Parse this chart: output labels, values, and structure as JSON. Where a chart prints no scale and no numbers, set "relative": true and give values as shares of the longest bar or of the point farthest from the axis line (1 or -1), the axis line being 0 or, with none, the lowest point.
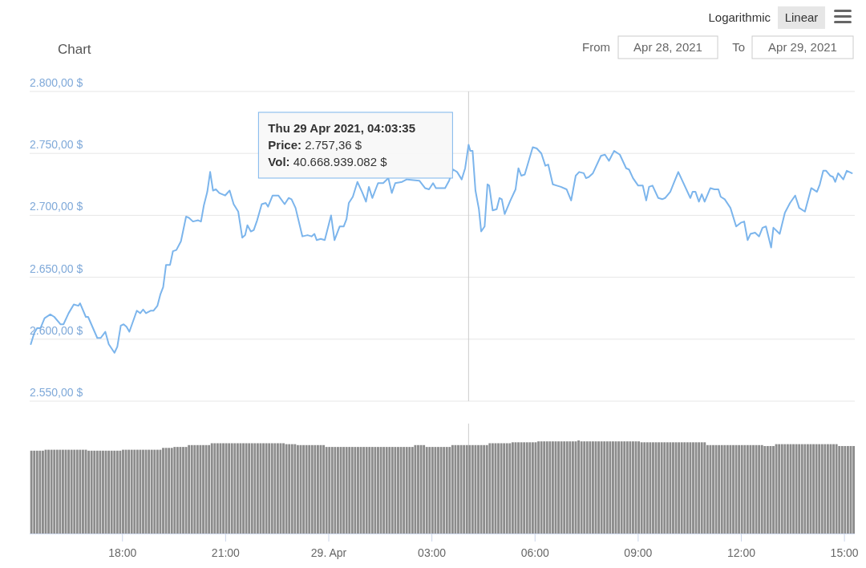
{
  "chart_data": [
    {
      "type": "line",
      "title": "Chart",
      "color": "#7cb5ec",
      "xlim": [
        "2021-04-28T15:18",
        "2021-04-29T15:18"
      ],
      "ylim": [
        2550,
        2800
      ],
      "grid": "y",
      "tick_labels": "y",
      "yticks": [
        {
          "value": 2550,
          "label": "2.550,00 $"
        },
        {
          "value": 2600,
          "label": "2.600,00 $"
        },
        {
          "value": 2650,
          "label": "2.650,00 $"
        },
        {
          "value": 2700,
          "label": "2.700,00 $"
        },
        {
          "value": 2750,
          "label": "2.750,00 $"
        },
        {
          "value": 2800,
          "label": "2.800,00 $"
        }
      ],
      "x": [
        "2021-04-28T15:20",
        "2021-04-28T15:26",
        "2021-04-28T15:31",
        "2021-04-28T15:37",
        "2021-04-28T15:44",
        "2021-04-28T15:54",
        "2021-04-28T16:01",
        "2021-04-28T16:12",
        "2021-04-28T16:17",
        "2021-04-28T16:26",
        "2021-04-28T16:35",
        "2021-04-28T16:43",
        "2021-04-28T16:46",
        "2021-04-28T16:56",
        "2021-04-28T17:00",
        "2021-04-28T17:16",
        "2021-04-28T17:22",
        "2021-04-28T17:30",
        "2021-04-28T17:36",
        "2021-04-28T17:46",
        "2021-04-28T17:51",
        "2021-04-28T17:57",
        "2021-04-28T18:02",
        "2021-04-28T18:07",
        "2021-04-28T18:12",
        "2021-04-28T18:25",
        "2021-04-28T18:31",
        "2021-04-28T18:36",
        "2021-04-28T18:41",
        "2021-04-28T18:49",
        "2021-04-28T18:54",
        "2021-04-28T19:01",
        "2021-04-28T19:06",
        "2021-04-28T19:11",
        "2021-04-28T19:16",
        "2021-04-28T19:23",
        "2021-04-28T19:28",
        "2021-04-28T19:34",
        "2021-04-28T19:42",
        "2021-04-28T19:51",
        "2021-04-28T19:56",
        "2021-04-28T20:03",
        "2021-04-28T20:12",
        "2021-04-28T20:17",
        "2021-04-28T20:22",
        "2021-04-28T20:28",
        "2021-04-28T20:33",
        "2021-04-28T20:38",
        "2021-04-28T20:43",
        "2021-04-28T20:49",
        "2021-04-28T20:54",
        "2021-04-28T20:59",
        "2021-04-28T21:07",
        "2021-04-28T21:14",
        "2021-04-28T21:22",
        "2021-04-28T21:29",
        "2021-04-28T21:34",
        "2021-04-28T21:38",
        "2021-04-28T21:44",
        "2021-04-28T21:49",
        "2021-04-28T21:55",
        "2021-04-28T22:03",
        "2021-04-28T22:10",
        "2021-04-28T22:14",
        "2021-04-28T22:22",
        "2021-04-28T22:28",
        "2021-04-28T22:32",
        "2021-04-28T22:43",
        "2021-04-28T22:50",
        "2021-04-28T22:55",
        "2021-04-28T23:02",
        "2021-04-28T23:14",
        "2021-04-28T23:23",
        "2021-04-28T23:30",
        "2021-04-28T23:35",
        "2021-04-28T23:39",
        "2021-04-28T23:46",
        "2021-04-28T23:53",
        "2021-04-29T00:04",
        "2021-04-29T00:10",
        "2021-04-29T00:19",
        "2021-04-29T00:26",
        "2021-04-29T00:31",
        "2021-04-29T00:35",
        "2021-04-29T00:42",
        "2021-04-29T00:50",
        "2021-04-29T00:58",
        "2021-04-29T01:05",
        "2021-04-29T01:10",
        "2021-04-29T01:16",
        "2021-04-29T01:26",
        "2021-04-29T01:35",
        "2021-04-29T01:44",
        "2021-04-29T01:50",
        "2021-04-29T01:56",
        "2021-04-29T02:08",
        "2021-04-29T02:16",
        "2021-04-29T02:38",
        "2021-04-29T02:48",
        "2021-04-29T02:55",
        "2021-04-29T03:02",
        "2021-04-29T03:07",
        "2021-04-29T03:23",
        "2021-04-29T03:30",
        "2021-04-29T03:37",
        "2021-04-29T03:44",
        "2021-04-29T03:52",
        "2021-04-29T03:58",
        "2021-04-29T04:04",
        "2021-04-29T04:07",
        "2021-04-29T04:11",
        "2021-04-29T04:16",
        "2021-04-29T04:22",
        "2021-04-29T04:26",
        "2021-04-29T04:32",
        "2021-04-29T04:37",
        "2021-04-29T04:40",
        "2021-04-29T04:46",
        "2021-04-29T04:53",
        "2021-04-29T04:58",
        "2021-04-29T05:02",
        "2021-04-29T05:07",
        "2021-04-29T05:17",
        "2021-04-29T05:26",
        "2021-04-29T05:31",
        "2021-04-29T05:36",
        "2021-04-29T05:42",
        "2021-04-29T05:49",
        "2021-04-29T05:56",
        "2021-04-29T06:03",
        "2021-04-29T06:11",
        "2021-04-29T06:18",
        "2021-04-29T06:23",
        "2021-04-29T06:31",
        "2021-04-29T06:38",
        "2021-04-29T06:45",
        "2021-04-29T06:55",
        "2021-04-29T07:03",
        "2021-04-29T07:11",
        "2021-04-29T07:17",
        "2021-04-29T07:25",
        "2021-04-29T07:29",
        "2021-04-29T07:34",
        "2021-04-29T07:41",
        "2021-04-29T07:55",
        "2021-04-29T08:02",
        "2021-04-29T08:09",
        "2021-04-29T08:18",
        "2021-04-29T08:28",
        "2021-04-29T08:39",
        "2021-04-29T08:44",
        "2021-04-29T08:51",
        "2021-04-29T09:00",
        "2021-04-29T09:08",
        "2021-04-29T09:14",
        "2021-04-29T09:19",
        "2021-04-29T09:25",
        "2021-04-29T09:35",
        "2021-04-29T09:42",
        "2021-04-29T09:47",
        "2021-04-29T09:56",
        "2021-04-29T10:03",
        "2021-04-29T10:10",
        "2021-04-29T10:31",
        "2021-04-29T10:35",
        "2021-04-29T10:40",
        "2021-04-29T10:46",
        "2021-04-29T10:51",
        "2021-04-29T10:56",
        "2021-04-29T11:06",
        "2021-04-29T11:13",
        "2021-04-29T11:20",
        "2021-04-29T11:24",
        "2021-04-29T11:31",
        "2021-04-29T11:41",
        "2021-04-29T11:51",
        "2021-04-29T11:59",
        "2021-04-29T12:05",
        "2021-04-29T12:11",
        "2021-04-29T12:16",
        "2021-04-29T12:24",
        "2021-04-29T12:31",
        "2021-04-29T12:37",
        "2021-04-29T12:43",
        "2021-04-29T12:52",
        "2021-04-29T12:56",
        "2021-04-29T13:07",
        "2021-04-29T13:16",
        "2021-04-29T13:25",
        "2021-04-29T13:34",
        "2021-04-29T13:41",
        "2021-04-29T13:51",
        "2021-04-29T14:02",
        "2021-04-29T14:12",
        "2021-04-29T14:17",
        "2021-04-29T14:23",
        "2021-04-29T14:28",
        "2021-04-29T14:35",
        "2021-04-29T14:40",
        "2021-04-29T14:44",
        "2021-04-29T14:49",
        "2021-04-29T14:58",
        "2021-04-29T15:04",
        "2021-04-29T15:13"
      ],
      "values": [
        2596,
        2605,
        2609,
        2609,
        2617,
        2620,
        2618,
        2612,
        2612,
        2621,
        2628,
        2627,
        2629,
        2618,
        2618,
        2601,
        2601,
        2606,
        2596,
        2589,
        2594,
        2611,
        2612,
        2610,
        2606,
        2623,
        2621,
        2624,
        2621,
        2623,
        2623,
        2627,
        2636,
        2642,
        2660,
        2660,
        2671,
        2672,
        2679,
        2699,
        2698,
        2695,
        2696,
        2695,
        2708,
        2719,
        2735,
        2720,
        2721,
        2718,
        2717,
        2716,
        2720,
        2709,
        2703,
        2682,
        2684,
        2692,
        2687,
        2688,
        2696,
        2709,
        2710,
        2707,
        2716,
        2716,
        2716,
        2709,
        2714,
        2713,
        2706,
        2683,
        2684,
        2683,
        2685,
        2680,
        2681,
        2680,
        2700,
        2680,
        2691,
        2691,
        2697,
        2710,
        2715,
        2727,
        2719,
        2711,
        2723,
        2714,
        2726,
        2726,
        2730,
        2718,
        2726,
        2727,
        2729,
        2728,
        2722,
        2721,
        2726,
        2722,
        2722,
        2728,
        2737,
        2735,
        2729,
        2738,
        2757,
        2752,
        2752,
        2720,
        2705,
        2687,
        2691,
        2725,
        2724,
        2704,
        2705,
        2714,
        2713,
        2701,
        2712,
        2721,
        2738,
        2732,
        2733,
        2744,
        2755,
        2754,
        2750,
        2740,
        2741,
        2725,
        2724,
        2723,
        2721,
        2712,
        2732,
        2735,
        2734,
        2730,
        2731,
        2734,
        2748,
        2749,
        2744,
        2752,
        2749,
        2738,
        2737,
        2730,
        2724,
        2724,
        2712,
        2723,
        2724,
        2714,
        2713,
        2714,
        2719,
        2727,
        2735,
        2714,
        2719,
        2719,
        2711,
        2717,
        2711,
        2722,
        2721,
        2721,
        2715,
        2713,
        2706,
        2691,
        2694,
        2695,
        2680,
        2685,
        2686,
        2683,
        2690,
        2691,
        2674,
        2690,
        2685,
        2702,
        2710,
        2716,
        2706,
        2703,
        2722,
        2719,
        2725,
        2736,
        2736,
        2732,
        2731,
        2727,
        2734,
        2729,
        2736,
        2734
      ],
      "ref_lines": [
        {
          "axis": "x",
          "value": "2021-04-29T04:04"
        }
      ],
      "annotations": [
        "Thu 29 Apr 2021, 04:03:35",
        "Price: 2.757,36 $",
        "Vol: 40.668.939.082 $",
        "Logarithmic",
        "Linear",
        "From",
        "Apr 28, 2021",
        "To",
        "Apr 29, 2021"
      ]
    },
    {
      "type": "bar",
      "relative": true,
      "color": "#8c8c8c",
      "xlim": [
        "2021-04-28T15:18",
        "2021-04-29T15:18"
      ],
      "tick_labels": "x",
      "xticks": [
        {
          "value": "2021-04-28T18:00",
          "label": "18:00"
        },
        {
          "value": "2021-04-28T21:00",
          "label": "21:00"
        },
        {
          "value": "2021-04-29T00:00",
          "label": "29. Apr"
        },
        {
          "value": "2021-04-29T03:00",
          "label": "03:00"
        },
        {
          "value": "2021-04-29T06:00",
          "label": "06:00"
        },
        {
          "value": "2021-04-29T09:00",
          "label": "09:00"
        },
        {
          "value": "2021-04-29T12:00",
          "label": "12:00"
        },
        {
          "value": "2021-04-29T15:00",
          "label": "15:00"
        }
      ],
      "ref_lines": [
        {
          "axis": "x",
          "value": "2021-04-29T04:04"
        }
      ],
      "x": [
        "2021-04-28T15:21",
        "2021-04-28T15:26",
        "2021-04-28T15:31",
        "2021-04-28T15:36",
        "2021-04-28T15:41",
        "2021-04-28T15:46",
        "2021-04-28T15:51",
        "2021-04-28T15:56",
        "2021-04-28T16:01",
        "2021-04-28T16:06",
        "2021-04-28T16:11",
        "2021-04-28T16:16",
        "2021-04-28T16:21",
        "2021-04-28T16:26",
        "2021-04-28T16:31",
        "2021-04-28T16:36",
        "2021-04-28T16:41",
        "2021-04-28T16:46",
        "2021-04-28T16:51",
        "2021-04-28T16:56",
        "2021-04-28T17:01",
        "2021-04-28T17:06",
        "2021-04-28T17:11",
        "2021-04-28T17:16",
        "2021-04-28T17:21",
        "2021-04-28T17:26",
        "2021-04-28T17:31",
        "2021-04-28T17:36",
        "2021-04-28T17:41",
        "2021-04-28T17:46",
        "2021-04-28T17:51",
        "2021-04-28T17:56",
        "2021-04-28T18:01",
        "2021-04-28T18:06",
        "2021-04-28T18:11",
        "2021-04-28T18:16",
        "2021-04-28T18:21",
        "2021-04-28T18:26",
        "2021-04-28T18:31",
        "2021-04-28T18:36",
        "2021-04-28T18:41",
        "2021-04-28T18:46",
        "2021-04-28T18:51",
        "2021-04-28T18:56",
        "2021-04-28T19:01",
        "2021-04-28T19:06",
        "2021-04-28T19:11",
        "2021-04-28T19:16",
        "2021-04-28T19:21",
        "2021-04-28T19:26",
        "2021-04-28T19:31",
        "2021-04-28T19:36",
        "2021-04-28T19:41",
        "2021-04-28T19:46",
        "2021-04-28T19:51",
        "2021-04-28T19:56",
        "2021-04-28T20:01",
        "2021-04-28T20:06",
        "2021-04-28T20:11",
        "2021-04-28T20:16",
        "2021-04-28T20:21",
        "2021-04-28T20:26",
        "2021-04-28T20:31",
        "2021-04-28T20:36",
        "2021-04-28T20:41",
        "2021-04-28T20:46",
        "2021-04-28T20:51",
        "2021-04-28T20:56",
        "2021-04-28T21:01",
        "2021-04-28T21:06",
        "2021-04-28T21:11",
        "2021-04-28T21:16",
        "2021-04-28T21:21",
        "2021-04-28T21:26",
        "2021-04-28T21:31",
        "2021-04-28T21:36",
        "2021-04-28T21:41",
        "2021-04-28T21:46",
        "2021-04-28T21:51",
        "2021-04-28T21:56",
        "2021-04-28T22:01",
        "2021-04-28T22:06",
        "2021-04-28T22:11",
        "2021-04-28T22:16",
        "2021-04-28T22:21",
        "2021-04-28T22:26",
        "2021-04-28T22:31",
        "2021-04-28T22:36",
        "2021-04-28T22:41",
        "2021-04-28T22:46",
        "2021-04-28T22:51",
        "2021-04-28T22:56",
        "2021-04-28T23:01",
        "2021-04-28T23:06",
        "2021-04-28T23:11",
        "2021-04-28T23:16",
        "2021-04-28T23:21",
        "2021-04-28T23:26",
        "2021-04-28T23:31",
        "2021-04-28T23:36",
        "2021-04-28T23:41",
        "2021-04-28T23:46",
        "2021-04-28T23:51",
        "2021-04-28T23:56",
        "2021-04-29T00:01",
        "2021-04-29T00:06",
        "2021-04-29T00:11",
        "2021-04-29T00:16",
        "2021-04-29T00:21",
        "2021-04-29T00:26",
        "2021-04-29T00:31",
        "2021-04-29T00:36",
        "2021-04-29T00:41",
        "2021-04-29T00:46",
        "2021-04-29T00:51",
        "2021-04-29T00:56",
        "2021-04-29T01:01",
        "2021-04-29T01:06",
        "2021-04-29T01:11",
        "2021-04-29T01:16",
        "2021-04-29T01:21",
        "2021-04-29T01:26",
        "2021-04-29T01:31",
        "2021-04-29T01:36",
        "2021-04-29T01:41",
        "2021-04-29T01:46",
        "2021-04-29T01:51",
        "2021-04-29T01:56",
        "2021-04-29T02:01",
        "2021-04-29T02:06",
        "2021-04-29T02:11",
        "2021-04-29T02:16",
        "2021-04-29T02:21",
        "2021-04-29T02:26",
        "2021-04-29T02:31",
        "2021-04-29T02:36",
        "2021-04-29T02:41",
        "2021-04-29T02:46",
        "2021-04-29T02:51",
        "2021-04-29T02:56",
        "2021-04-29T03:01",
        "2021-04-29T03:06",
        "2021-04-29T03:11",
        "2021-04-29T03:16",
        "2021-04-29T03:21",
        "2021-04-29T03:26",
        "2021-04-29T03:31",
        "2021-04-29T03:36",
        "2021-04-29T03:41",
        "2021-04-29T03:46",
        "2021-04-29T03:51",
        "2021-04-29T03:56",
        "2021-04-29T04:01",
        "2021-04-29T04:06",
        "2021-04-29T04:11",
        "2021-04-29T04:16",
        "2021-04-29T04:21",
        "2021-04-29T04:26",
        "2021-04-29T04:31",
        "2021-04-29T04:36",
        "2021-04-29T04:41",
        "2021-04-29T04:46",
        "2021-04-29T04:51",
        "2021-04-29T04:56",
        "2021-04-29T05:01",
        "2021-04-29T05:06",
        "2021-04-29T05:11",
        "2021-04-29T05:16",
        "2021-04-29T05:21",
        "2021-04-29T05:26",
        "2021-04-29T05:31",
        "2021-04-29T05:36",
        "2021-04-29T05:41",
        "2021-04-29T05:46",
        "2021-04-29T05:51",
        "2021-04-29T05:56",
        "2021-04-29T06:01",
        "2021-04-29T06:06",
        "2021-04-29T06:11",
        "2021-04-29T06:16",
        "2021-04-29T06:21",
        "2021-04-29T06:26",
        "2021-04-29T06:31",
        "2021-04-29T06:36",
        "2021-04-29T06:41",
        "2021-04-29T06:46",
        "2021-04-29T06:51",
        "2021-04-29T06:56",
        "2021-04-29T07:01",
        "2021-04-29T07:06",
        "2021-04-29T07:11",
        "2021-04-29T07:16",
        "2021-04-29T07:21",
        "2021-04-29T07:26",
        "2021-04-29T07:31",
        "2021-04-29T07:36",
        "2021-04-29T07:41",
        "2021-04-29T07:46",
        "2021-04-29T07:51",
        "2021-04-29T07:56",
        "2021-04-29T08:01",
        "2021-04-29T08:06",
        "2021-04-29T08:11",
        "2021-04-29T08:16",
        "2021-04-29T08:21",
        "2021-04-29T08:26",
        "2021-04-29T08:31",
        "2021-04-29T08:36",
        "2021-04-29T08:41",
        "2021-04-29T08:46",
        "2021-04-29T08:51",
        "2021-04-29T08:56",
        "2021-04-29T09:01",
        "2021-04-29T09:06",
        "2021-04-29T09:11",
        "2021-04-29T09:16",
        "2021-04-29T09:21",
        "2021-04-29T09:26",
        "2021-04-29T09:31",
        "2021-04-29T09:36",
        "2021-04-29T09:41",
        "2021-04-29T09:46",
        "2021-04-29T09:51",
        "2021-04-29T09:56",
        "2021-04-29T10:01",
        "2021-04-29T10:06",
        "2021-04-29T10:11",
        "2021-04-29T10:16",
        "2021-04-29T10:21",
        "2021-04-29T10:26",
        "2021-04-29T10:31",
        "2021-04-29T10:36",
        "2021-04-29T10:41",
        "2021-04-29T10:46",
        "2021-04-29T10:51",
        "2021-04-29T10:56",
        "2021-04-29T11:01",
        "2021-04-29T11:06",
        "2021-04-29T11:11",
        "2021-04-29T11:16",
        "2021-04-29T11:21",
        "2021-04-29T11:26",
        "2021-04-29T11:31",
        "2021-04-29T11:36",
        "2021-04-29T11:41",
        "2021-04-29T11:46",
        "2021-04-29T11:51",
        "2021-04-29T11:56",
        "2021-04-29T12:01",
        "2021-04-29T12:06",
        "2021-04-29T12:11",
        "2021-04-29T12:16",
        "2021-04-29T12:21",
        "2021-04-29T12:26",
        "2021-04-29T12:31",
        "2021-04-29T12:36",
        "2021-04-29T12:41",
        "2021-04-29T12:46",
        "2021-04-29T12:51",
        "2021-04-29T12:56",
        "2021-04-29T13:01",
        "2021-04-29T13:06",
        "2021-04-29T13:11",
        "2021-04-29T13:16",
        "2021-04-29T13:21",
        "2021-04-29T13:26",
        "2021-04-29T13:31",
        "2021-04-29T13:36",
        "2021-04-29T13:41",
        "2021-04-29T13:46",
        "2021-04-29T13:51",
        "2021-04-29T13:56",
        "2021-04-29T14:01",
        "2021-04-29T14:06",
        "2021-04-29T14:11",
        "2021-04-29T14:16",
        "2021-04-29T14:21",
        "2021-04-29T14:26",
        "2021-04-29T14:31",
        "2021-04-29T14:36",
        "2021-04-29T14:41",
        "2021-04-29T14:46",
        "2021-04-29T14:51",
        "2021-04-29T14:56",
        "2021-04-29T15:01",
        "2021-04-29T15:06",
        "2021-04-29T15:11",
        "2021-04-29T15:16"
      ],
      "values": [
        0.89,
        0.89,
        0.89,
        0.89,
        0.89,
        0.9,
        0.9,
        0.9,
        0.9,
        0.9,
        0.9,
        0.9,
        0.9,
        0.9,
        0.9,
        0.9,
        0.9,
        0.9,
        0.9,
        0.9,
        0.89,
        0.89,
        0.89,
        0.89,
        0.89,
        0.89,
        0.89,
        0.89,
        0.89,
        0.89,
        0.89,
        0.89,
        0.9,
        0.9,
        0.9,
        0.9,
        0.9,
        0.9,
        0.9,
        0.9,
        0.9,
        0.9,
        0.9,
        0.9,
        0.9,
        0.9,
        0.92,
        0.92,
        0.92,
        0.92,
        0.93,
        0.93,
        0.93,
        0.93,
        0.93,
        0.95,
        0.95,
        0.95,
        0.95,
        0.95,
        0.95,
        0.95,
        0.95,
        0.97,
        0.97,
        0.97,
        0.97,
        0.97,
        0.97,
        0.97,
        0.97,
        0.97,
        0.97,
        0.97,
        0.97,
        0.97,
        0.97,
        0.97,
        0.97,
        0.97,
        0.97,
        0.97,
        0.97,
        0.97,
        0.97,
        0.97,
        0.97,
        0.97,
        0.97,
        0.96,
        0.96,
        0.96,
        0.96,
        0.95,
        0.95,
        0.95,
        0.95,
        0.95,
        0.95,
        0.95,
        0.95,
        0.95,
        0.95,
        0.93,
        0.93,
        0.93,
        0.93,
        0.93,
        0.93,
        0.93,
        0.93,
        0.93,
        0.93,
        0.93,
        0.93,
        0.93,
        0.93,
        0.93,
        0.93,
        0.93,
        0.93,
        0.93,
        0.93,
        0.93,
        0.93,
        0.93,
        0.93,
        0.93,
        0.93,
        0.93,
        0.93,
        0.93,
        0.93,
        0.93,
        0.95,
        0.95,
        0.95,
        0.95,
        0.93,
        0.93,
        0.93,
        0.93,
        0.93,
        0.93,
        0.93,
        0.93,
        0.93,
        0.95,
        0.95,
        0.95,
        0.95,
        0.95,
        0.95,
        0.95,
        0.95,
        0.95,
        0.95,
        0.95,
        0.95,
        0.95,
        0.97,
        0.97,
        0.97,
        0.97,
        0.97,
        0.97,
        0.97,
        0.97,
        0.98,
        0.98,
        0.98,
        0.98,
        0.98,
        0.98,
        0.98,
        0.98,
        0.98,
        0.99,
        0.99,
        0.99,
        0.99,
        0.99,
        0.99,
        0.99,
        0.99,
        0.99,
        0.99,
        0.99,
        0.99,
        0.99,
        0.99,
        1,
        0.99,
        0.99,
        0.99,
        0.99,
        0.99,
        0.99,
        0.99,
        0.99,
        0.99,
        0.99,
        0.99,
        0.99,
        0.99,
        0.99,
        0.99,
        0.99,
        0.99,
        0.99,
        0.99,
        0.99,
        0.99,
        0.98,
        0.98,
        0.98,
        0.98,
        0.98,
        0.98,
        0.98,
        0.98,
        0.98,
        0.98,
        0.98,
        0.98,
        0.98,
        0.98,
        0.98,
        0.98,
        0.98,
        0.98,
        0.98,
        0.98,
        0.98,
        0.98,
        0.98,
        0.95,
        0.95,
        0.95,
        0.95,
        0.95,
        0.95,
        0.95,
        0.95,
        0.95,
        0.95,
        0.95,
        0.95,
        0.95,
        0.95,
        0.95,
        0.95,
        0.95,
        0.95,
        0.95,
        0.95,
        0.94,
        0.94,
        0.94,
        0.94,
        0.96,
        0.96,
        0.96,
        0.96,
        0.96,
        0.96,
        0.96,
        0.96,
        0.96,
        0.96,
        0.96,
        0.96,
        0.96,
        0.96,
        0.96,
        0.96,
        0.96,
        0.96,
        0.96,
        0.96,
        0.96,
        0.96,
        0.94,
        0.94,
        0.94,
        0.94,
        0.94,
        0.94
      ]
    }
  ]
}
